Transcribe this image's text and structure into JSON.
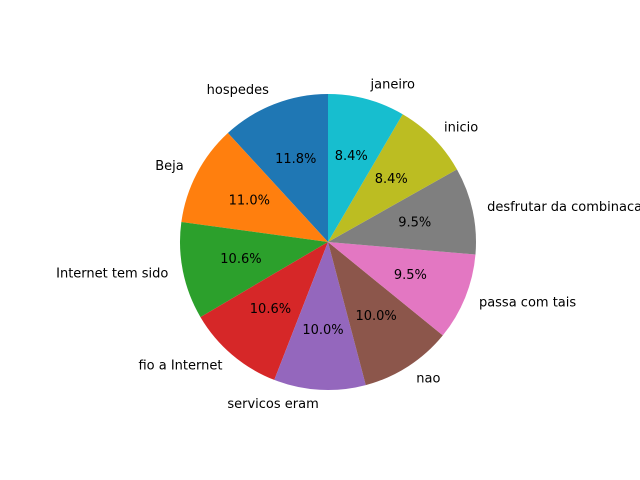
{
  "chart_data": {
    "type": "pie",
    "title": "",
    "start_angle_deg": 90,
    "direction": "counterclockwise",
    "slices": [
      {
        "label": "hospedes",
        "value": 11.8,
        "pct_label": "11.8%",
        "color": "#1f77b4"
      },
      {
        "label": "Beja",
        "value": 11.0,
        "pct_label": "11.0%",
        "color": "#ff7f0e"
      },
      {
        "label": "Internet tem sido",
        "value": 10.6,
        "pct_label": "10.6%",
        "color": "#2ca02c"
      },
      {
        "label": "fio a Internet",
        "value": 10.6,
        "pct_label": "10.6%",
        "color": "#d62728"
      },
      {
        "label": "servicos eram",
        "value": 10.0,
        "pct_label": "10.0%",
        "color": "#9467bd"
      },
      {
        "label": "nao",
        "value": 10.0,
        "pct_label": "10.0%",
        "color": "#8c564b"
      },
      {
        "label": "passa com tais",
        "value": 9.5,
        "pct_label": "9.5%",
        "color": "#e377c2"
      },
      {
        "label": "desfrutar da combinacao",
        "value": 9.5,
        "pct_label": "9.5%",
        "color": "#7f7f7f"
      },
      {
        "label": "inicio",
        "value": 8.4,
        "pct_label": "8.4%",
        "color": "#bcbd22"
      },
      {
        "label": "janeiro",
        "value": 8.4,
        "pct_label": "8.4%",
        "color": "#17becf"
      }
    ]
  }
}
